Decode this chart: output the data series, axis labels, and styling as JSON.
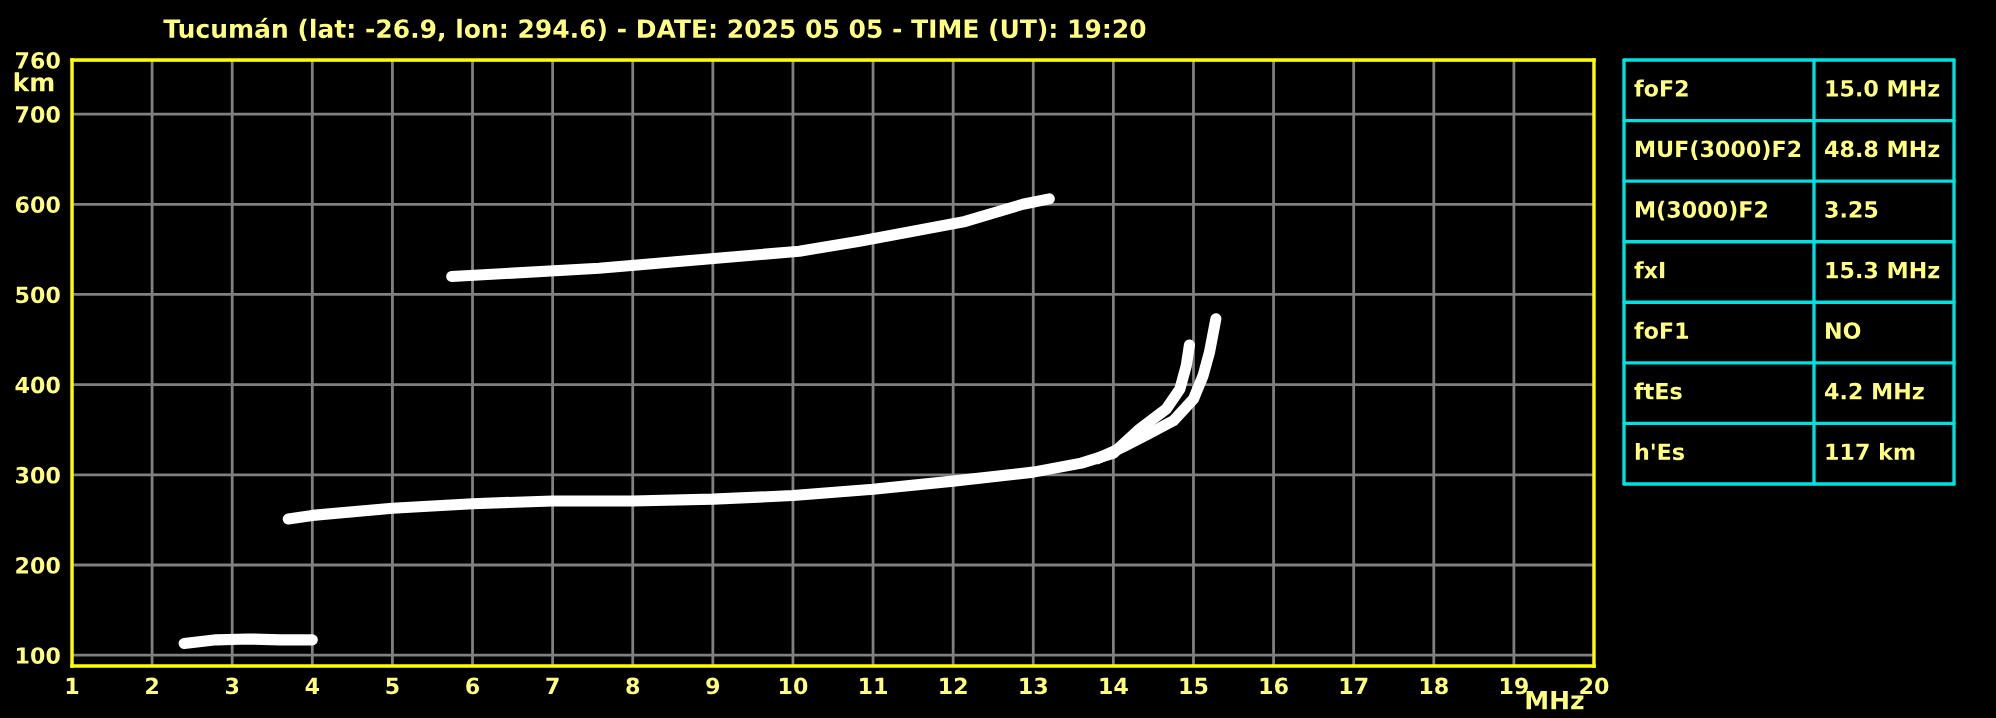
{
  "chart_data": {
    "type": "line",
    "title": "Tucumán (lat: -26.9, lon: 294.6) - DATE: 2025 05 05 - TIME (UT): 19:20",
    "xlabel": "MHz",
    "ylabel": "km",
    "xlim": [
      1,
      20
    ],
    "ylim": [
      88,
      760
    ],
    "xticks": [
      1,
      2,
      3,
      4,
      5,
      6,
      7,
      8,
      9,
      10,
      11,
      12,
      13,
      14,
      15,
      16,
      17,
      18,
      19,
      20
    ],
    "yticks": [
      100,
      200,
      300,
      400,
      500,
      600,
      700,
      760
    ],
    "grid": true,
    "marker": "none",
    "line_style": "solid",
    "series": [
      {
        "color": "#ffffff",
        "x": [
          3.7,
          4.0,
          5.0,
          6.0,
          7.0,
          8.0,
          9.0,
          10.0,
          11.0,
          12.0,
          13.0,
          13.6,
          14.0,
          14.33,
          14.66,
          14.83,
          14.91,
          14.95
        ],
        "values": [
          251,
          255,
          263,
          268,
          271,
          271,
          273,
          277,
          284,
          293,
          303,
          313,
          324,
          351,
          373,
          395,
          421,
          444
        ]
      },
      {
        "color": "#ffffff",
        "x": [
          13.8,
          14.1,
          14.41,
          14.75,
          15.0,
          15.12,
          15.2,
          15.28
        ],
        "values": [
          318,
          330,
          344,
          360,
          384,
          410,
          436,
          473
        ]
      },
      {
        "color": "#ffffff",
        "x": [
          2.4,
          2.8,
          3.2,
          3.6,
          4.0
        ],
        "values": [
          113,
          117,
          118,
          117,
          117
        ]
      },
      {
        "color": "#ffffff",
        "x": [
          5.74,
          7.58,
          10.08,
          10.83,
          12.15,
          12.87,
          13.2
        ],
        "values": [
          520,
          529,
          548,
          559,
          581,
          600,
          606
        ]
      }
    ],
    "annotations": [
      "foF2",
      "15.0 MHz",
      "MUF(3000)F2",
      "48.8 MHz",
      "M(3000)F2",
      "3.25",
      "fxI",
      "15.3 MHz",
      "foF1",
      "NO",
      "ftEs",
      "4.2 MHz",
      "h'Es",
      "117 km"
    ]
  }
}
